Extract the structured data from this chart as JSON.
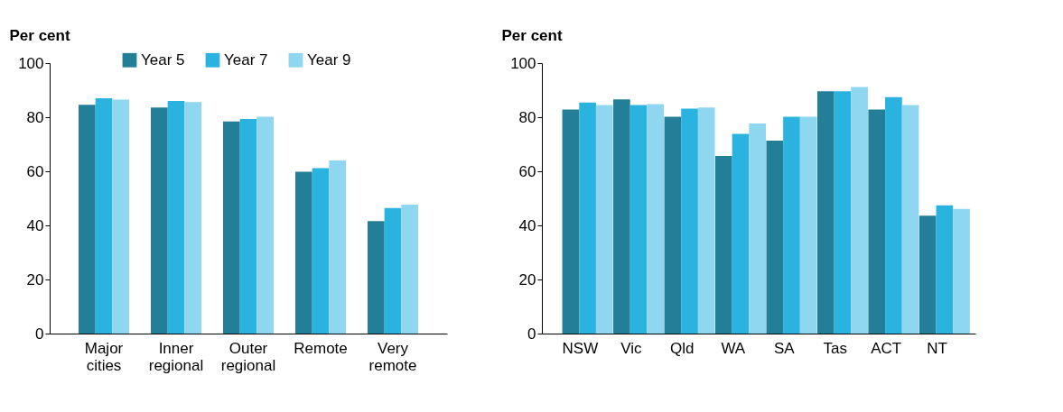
{
  "chart_data": [
    {
      "type": "bar",
      "ylabel": "Per cent",
      "categories": [
        "Major cities",
        "Inner regional",
        "Outer regional",
        "Remote",
        "Very remote"
      ],
      "ylim": [
        0,
        100
      ],
      "yticks": [
        0,
        20,
        40,
        60,
        80,
        100
      ],
      "legend": "top",
      "grid": false,
      "series": [
        {
          "name": "Year 5",
          "color": "#237e98",
          "values": [
            84.6,
            83.6,
            78.4,
            59.8,
            41.6
          ]
        },
        {
          "name": "Year 7",
          "color": "#2ab3de",
          "values": [
            87.0,
            86.0,
            79.3,
            61.2,
            46.4
          ]
        },
        {
          "name": "Year 9",
          "color": "#8fd6f0",
          "values": [
            86.5,
            85.6,
            80.2,
            64.0,
            47.7
          ]
        }
      ]
    },
    {
      "type": "bar",
      "ylabel": "Per cent",
      "categories": [
        "NSW",
        "Vic",
        "Qld",
        "WA",
        "SA",
        "Tas",
        "ACT",
        "NT"
      ],
      "ylim": [
        0,
        100
      ],
      "yticks": [
        0,
        20,
        40,
        60,
        80,
        100
      ],
      "legend": "top",
      "grid": false,
      "series": [
        {
          "name": "Year 5",
          "color": "#237e98",
          "values": [
            82.8,
            86.6,
            80.2,
            65.7,
            71.3,
            89.6,
            82.8,
            43.6
          ]
        },
        {
          "name": "Year 7",
          "color": "#2ab3de",
          "values": [
            85.4,
            84.5,
            83.2,
            73.8,
            80.2,
            89.6,
            87.4,
            47.4
          ]
        },
        {
          "name": "Year 9",
          "color": "#8fd6f0",
          "values": [
            84.5,
            84.8,
            83.6,
            77.7,
            80.2,
            91.2,
            84.5,
            46.1
          ]
        }
      ]
    }
  ]
}
